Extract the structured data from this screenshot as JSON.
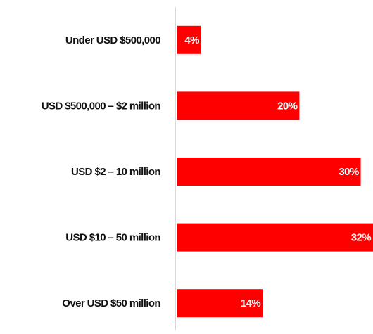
{
  "chart_data": {
    "type": "bar",
    "orientation": "horizontal",
    "categories": [
      "Under USD $500,000",
      "USD $500,000 – $2 million",
      "USD $2 – 10 million",
      "USD $10 – 50 million",
      "Over USD $50 million"
    ],
    "values": [
      4,
      20,
      30,
      32,
      14
    ],
    "value_labels": [
      "4%",
      "20%",
      "30%",
      "32%",
      "14%"
    ],
    "color": "#ff0000"
  }
}
